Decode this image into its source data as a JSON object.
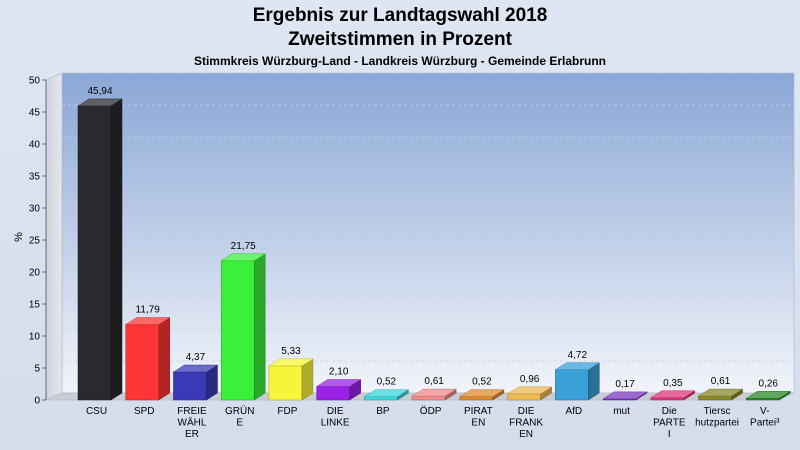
{
  "chart_data": {
    "type": "bar",
    "title_line1": "Ergebnis zur Landtagswahl 2018",
    "title_line2": "Zweitstimmen in Prozent",
    "subtitle": "Stimmkreis Würzburg-Land - Landkreis Würzburg - Gemeinde Erlabrunn",
    "ylabel": "%",
    "xlabel": "",
    "ylim": [
      0,
      50
    ],
    "yticks": [
      0,
      5,
      10,
      15,
      20,
      25,
      30,
      35,
      40,
      45,
      50
    ],
    "grid": true,
    "legend": "none",
    "categories": [
      [
        "CSU"
      ],
      [
        "SPD"
      ],
      [
        "FREIE",
        "WÄHL",
        "ER"
      ],
      [
        "GRÜN",
        "E"
      ],
      [
        "FDP"
      ],
      [
        "DIE",
        "LINKE"
      ],
      [
        "BP"
      ],
      [
        "ÖDP"
      ],
      [
        "PIRAT",
        "EN"
      ],
      [
        "DIE",
        "FRANK",
        "EN"
      ],
      [
        "AfD"
      ],
      [
        "mut"
      ],
      [
        "Die",
        "PARTE",
        "I"
      ],
      [
        "Tiersc",
        "hutzpartei"
      ],
      [
        "V-",
        "Partei³"
      ]
    ],
    "values": [
      45.94,
      11.79,
      4.37,
      21.75,
      5.33,
      2.1,
      0.52,
      0.61,
      0.52,
      0.96,
      4.72,
      0.17,
      0.35,
      0.61,
      0.26
    ],
    "value_labels": [
      "45,94",
      "11,79",
      "4,37",
      "21,75",
      "5,33",
      "2,10",
      "0,52",
      "0,61",
      "0,52",
      "0,96",
      "4,72",
      "0,17",
      "0,35",
      "0,61",
      "0,26"
    ],
    "colors": [
      "#2a2a2e",
      "#ff3535",
      "#3a3ab8",
      "#3af03a",
      "#f5f53a",
      "#9a22e6",
      "#38d8dc",
      "#f28a8a",
      "#e08a2a",
      "#ecba52",
      "#3aa0d8",
      "#7a3ac0",
      "#e0357a",
      "#8a8a2a",
      "#2a8a2a"
    ]
  }
}
